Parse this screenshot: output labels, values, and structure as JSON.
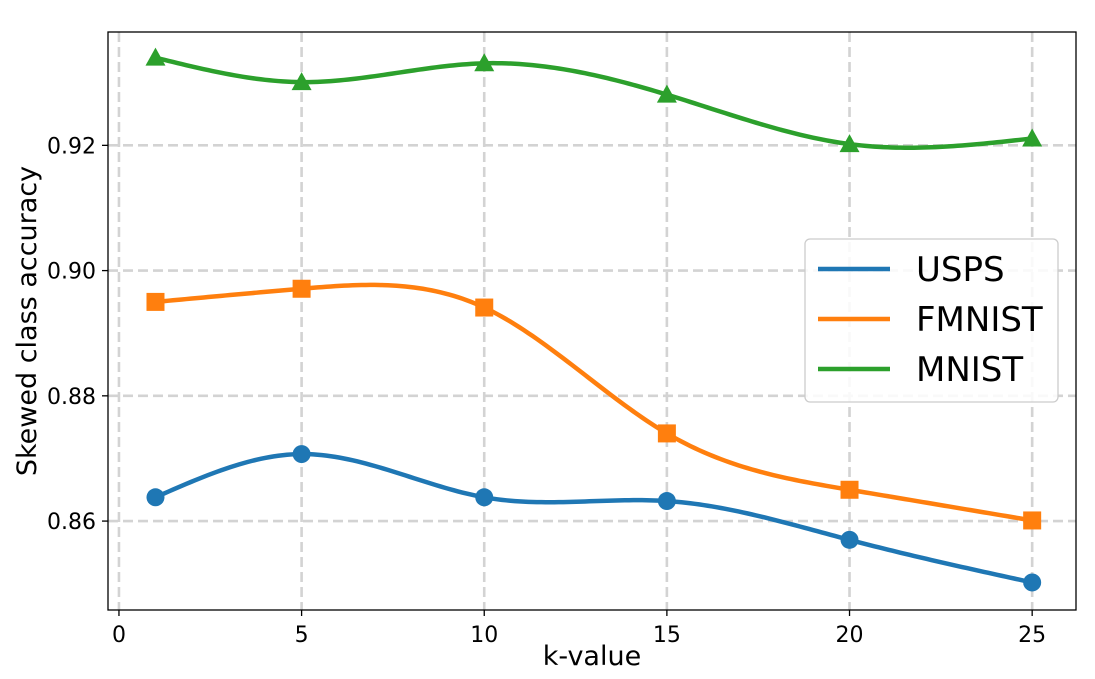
{
  "chart_data": {
    "type": "line",
    "title": "",
    "xlabel": "k-value",
    "ylabel": "Skewed class accuracy",
    "x": [
      1,
      5,
      10,
      15,
      20,
      25
    ],
    "series": [
      {
        "name": "USPS",
        "color": "#1f77b4",
        "marker": "circle",
        "values": [
          0.8638,
          0.8707,
          0.8638,
          0.8632,
          0.857,
          0.8502
        ]
      },
      {
        "name": "FMNIST",
        "color": "#ff7f0e",
        "marker": "square",
        "values": [
          0.895,
          0.8971,
          0.8941,
          0.874,
          0.865,
          0.8601
        ]
      },
      {
        "name": "MNIST",
        "color": "#2ca02c",
        "marker": "triangle",
        "values": [
          0.934,
          0.9301,
          0.9331,
          0.9281,
          0.9202,
          0.9211
        ]
      }
    ],
    "xticks": [
      "0",
      "5",
      "10",
      "15",
      "20",
      "25"
    ],
    "yticks": [
      "0.86",
      "0.88",
      "0.90",
      "0.92"
    ],
    "xlim": [
      -0.3,
      26.2
    ],
    "ylim": [
      0.8458,
      0.9381
    ],
    "grid": true,
    "legend_position": "center-right"
  }
}
